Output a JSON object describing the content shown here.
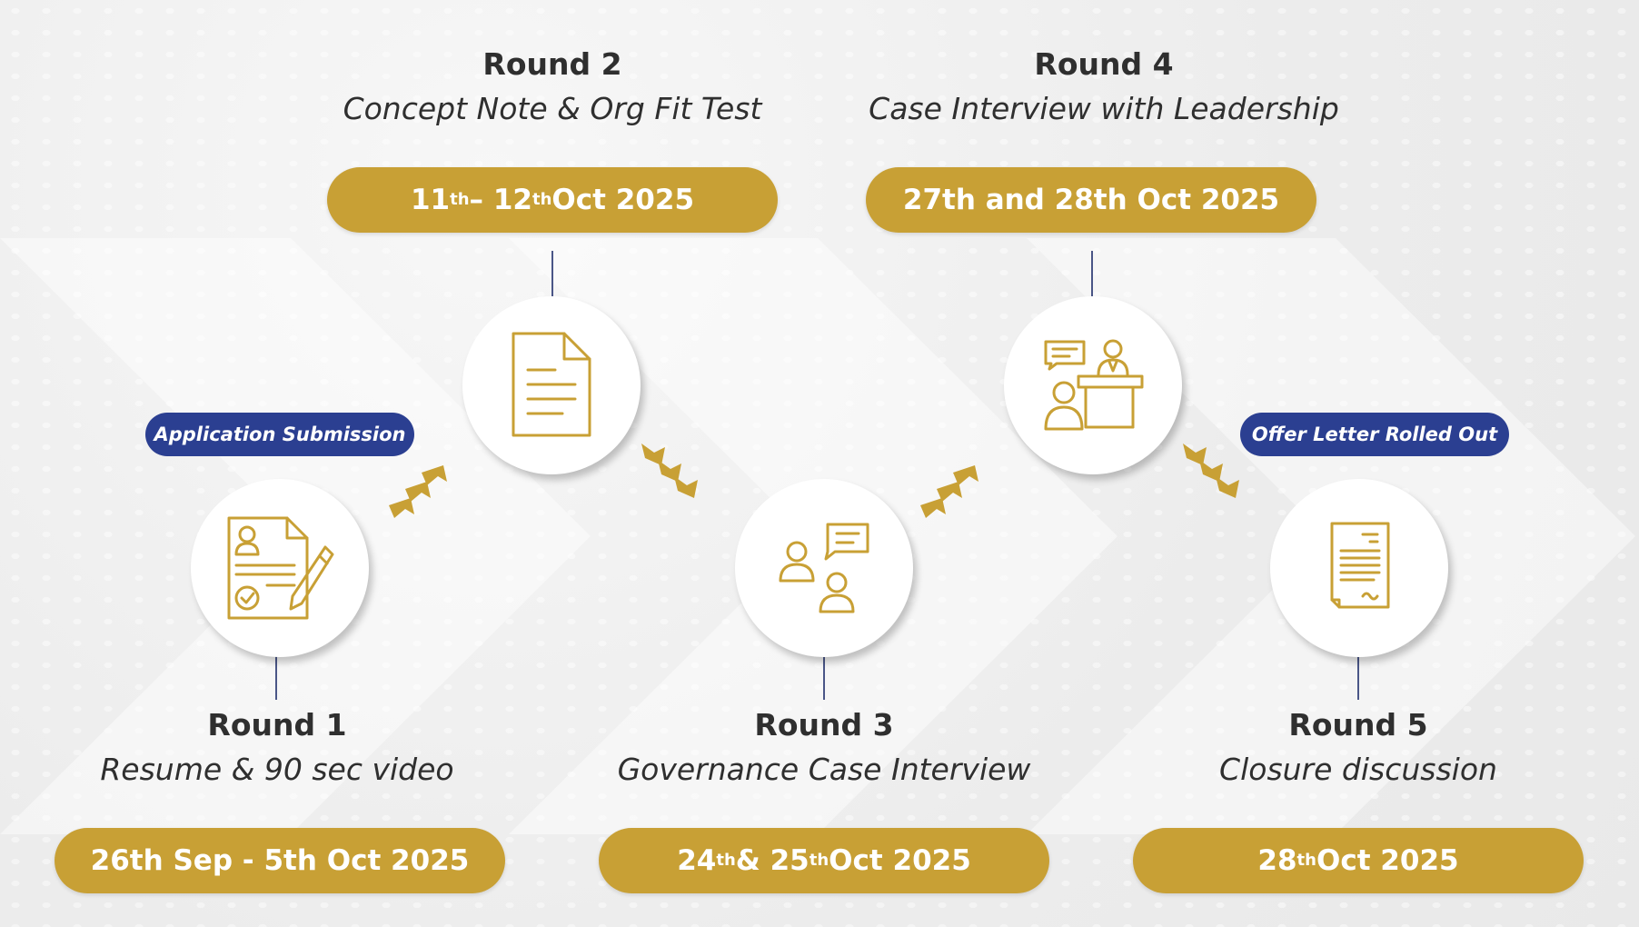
{
  "colors": {
    "gold": "#c8a035",
    "navy": "#2b3f91",
    "text": "#2f2f2f"
  },
  "rounds": [
    {
      "title": "Round 1",
      "subtitle": "Resume & 90 sec video",
      "icon": "resume-pen-icon",
      "date": {
        "a": "26th Sep - 5th Oct 2025",
        "a_sup": "",
        "b": "",
        "b_sup": "",
        "c": ""
      }
    },
    {
      "title": "Round 2",
      "subtitle": "Concept Note & Org Fit Test",
      "icon": "document-icon",
      "date": {
        "a": "11",
        "a_sup": "th",
        "b": "– 12",
        "b_sup": "th",
        "c": " Oct 2025"
      }
    },
    {
      "title": "Round 3",
      "subtitle": "Governance Case Interview",
      "icon": "discussion-icon",
      "date": {
        "a": "24",
        "a_sup": "th",
        "b": " & 25",
        "b_sup": "th",
        "c": " Oct 2025"
      }
    },
    {
      "title": "Round 4",
      "subtitle": "Case Interview with Leadership",
      "icon": "interview-desk-icon",
      "date": {
        "a": "27th and 28th Oct 2025",
        "a_sup": "",
        "b": "",
        "b_sup": "",
        "c": ""
      }
    },
    {
      "title": "Round 5",
      "subtitle": "Closure discussion",
      "icon": "offer-letter-icon",
      "date": {
        "a": "28",
        "a_sup": "th",
        "b": " Oct 2025",
        "b_sup": "",
        "c": ""
      }
    }
  ],
  "badges": {
    "start": "Application Submission",
    "end": "Offer Letter Rolled Out"
  }
}
